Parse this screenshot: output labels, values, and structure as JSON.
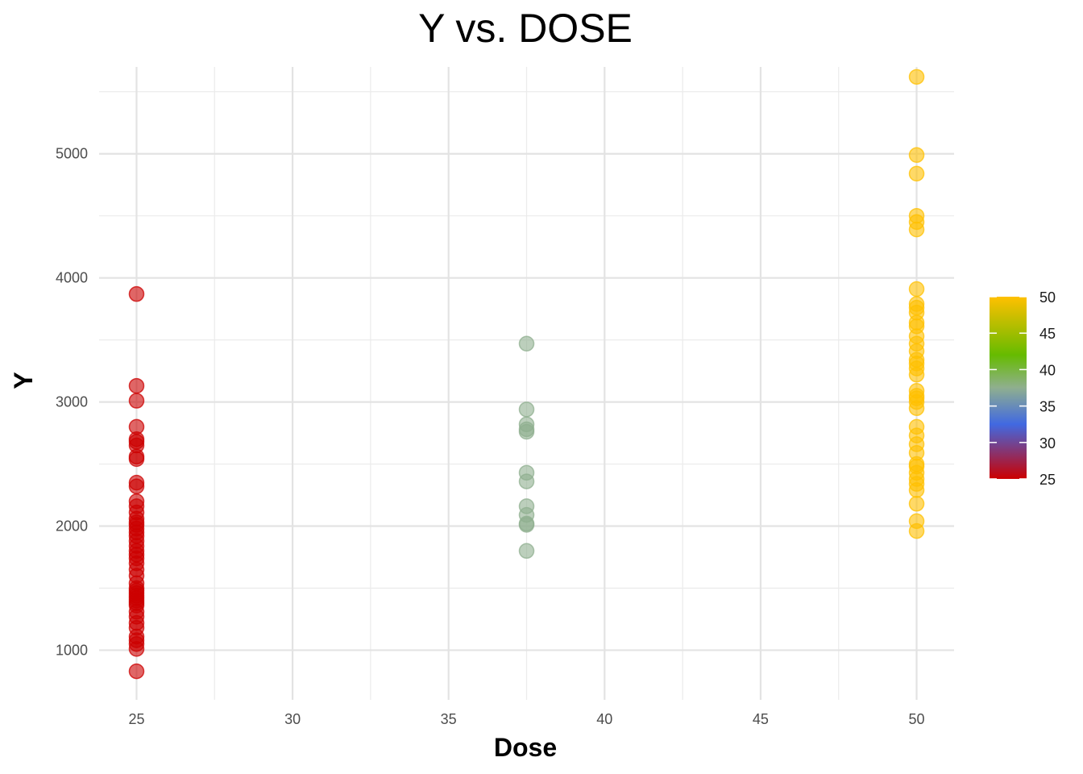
{
  "chart_data": {
    "type": "scatter",
    "title": "Y vs. DOSE",
    "xlabel": "Dose",
    "ylabel": "Y",
    "xlim": [
      23.8,
      51.2
    ],
    "ylim": [
      600,
      5700
    ],
    "x_ticks": [
      25,
      30,
      35,
      40,
      45,
      50
    ],
    "y_ticks": [
      1000,
      2000,
      3000,
      4000,
      5000
    ],
    "grid": true,
    "legend": {
      "type": "colorbar",
      "placement": "right",
      "min": 25,
      "max": 50,
      "ticks": [
        25,
        30,
        35,
        40,
        45,
        50
      ]
    },
    "color_scale": [
      {
        "value": 25,
        "color": "#CC0000"
      },
      {
        "value": 32.5,
        "color": "#4169E1"
      },
      {
        "value": 37.5,
        "color": "#8FAF8F"
      },
      {
        "value": 42,
        "color": "#66BB00"
      },
      {
        "value": 50,
        "color": "#FFC000"
      }
    ],
    "series": [
      {
        "dose": 25,
        "color": "#CC0000",
        "y": [
          3870,
          3130,
          3010,
          2800,
          2700,
          2680,
          2650,
          2560,
          2540,
          2350,
          2320,
          2200,
          2160,
          2110,
          2060,
          2030,
          2010,
          1980,
          1950,
          1920,
          1880,
          1840,
          1800,
          1770,
          1740,
          1700,
          1650,
          1600,
          1540,
          1500,
          1480,
          1460,
          1440,
          1420,
          1400,
          1380,
          1360,
          1310,
          1270,
          1220,
          1180,
          1110,
          1080,
          1050,
          1010,
          830
        ]
      },
      {
        "dose": 37.5,
        "color": "#8FAF8F",
        "y": [
          3470,
          2940,
          2820,
          2780,
          2760,
          2430,
          2360,
          2160,
          2090,
          2020,
          2010,
          1800
        ]
      },
      {
        "dose": 50,
        "color": "#FFC000",
        "y": [
          5620,
          4990,
          4840,
          4500,
          4450,
          4390,
          3910,
          3790,
          3760,
          3720,
          3640,
          3610,
          3530,
          3470,
          3410,
          3340,
          3310,
          3270,
          3220,
          3090,
          3050,
          3030,
          3000,
          2950,
          2800,
          2730,
          2660,
          2590,
          2500,
          2480,
          2430,
          2380,
          2340,
          2290,
          2180,
          2040,
          1960
        ]
      }
    ]
  }
}
